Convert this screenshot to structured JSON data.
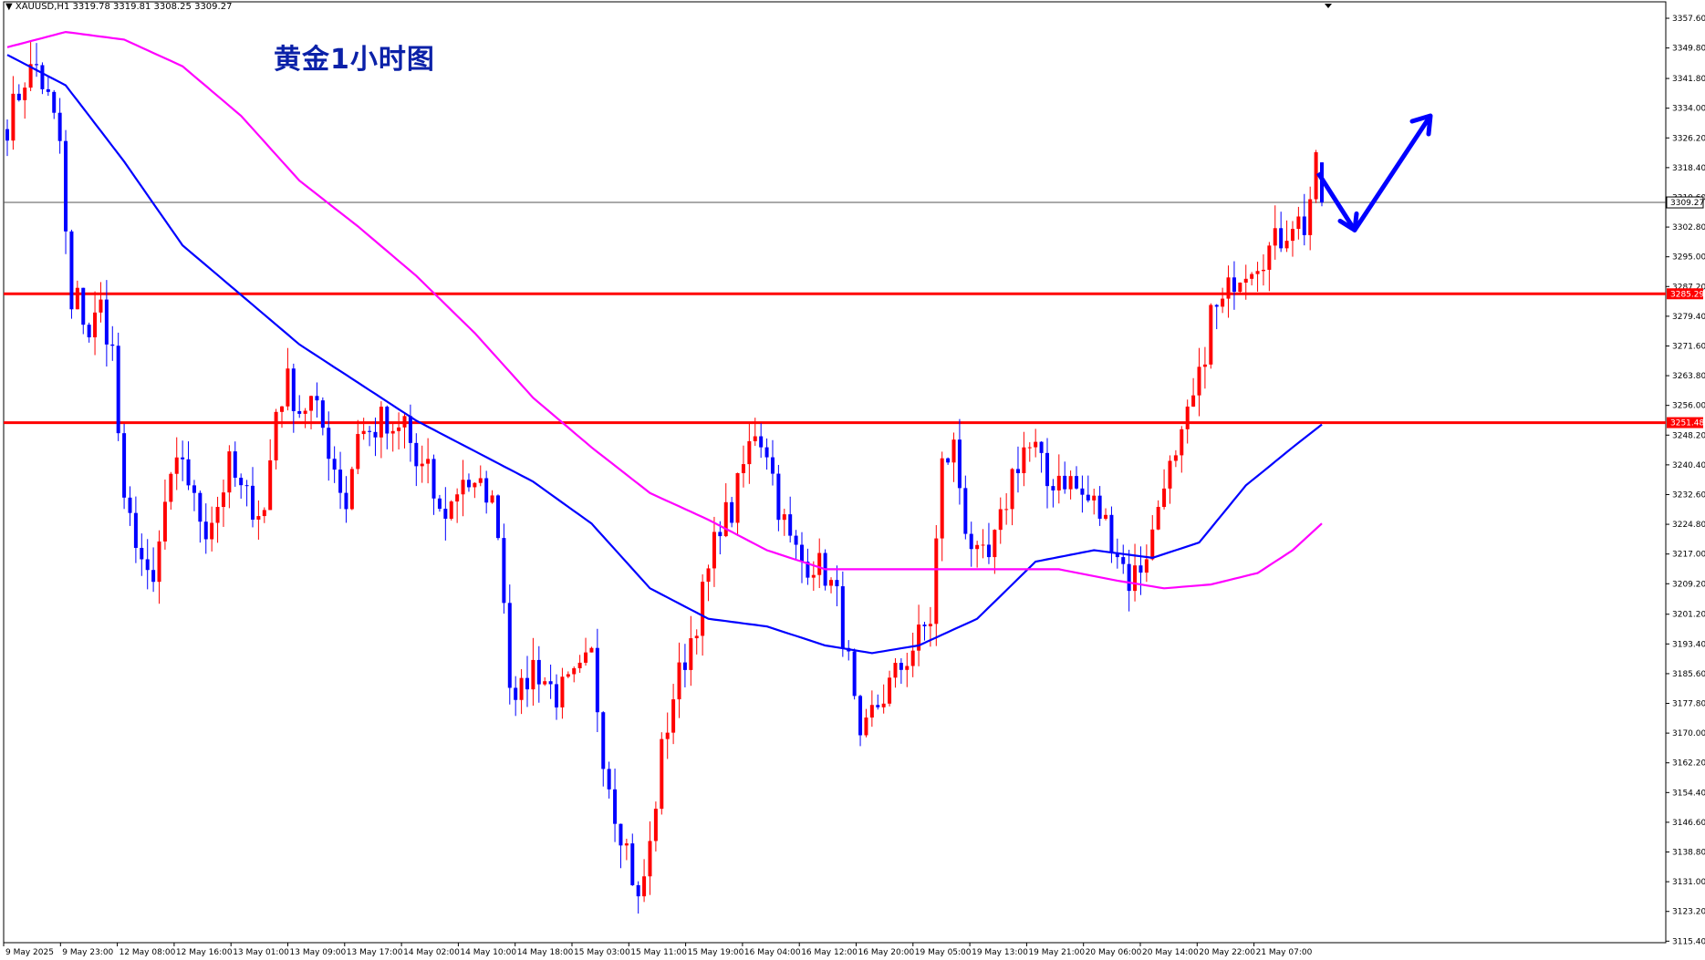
{
  "header": {
    "symbol_label": "▼ XAUUSD,H1  3319.78 3319.81 3308.25 3309.27"
  },
  "annotation": "黄金1小时图",
  "colors": {
    "bull": "#ff0000",
    "bear": "#0000ff",
    "ma_fast": "#0000ff",
    "ma_slow": "#ff00ff",
    "hline": "#ff0000",
    "arrow": "#0000ff"
  },
  "chart_data": {
    "type": "candlestick",
    "symbol": "XAUUSD",
    "timeframe": "H1",
    "ohlc_current": {
      "open": 3319.78,
      "high": 3319.81,
      "low": 3308.25,
      "close": 3309.27
    },
    "ylim": [
      3115.0,
      3360.0
    ],
    "y_ticks": [
      "3357.60",
      "3349.80",
      "3341.80",
      "3334.00",
      "3326.20",
      "3318.40",
      "3310.60",
      "3302.80",
      "3295.00",
      "3287.20",
      "3279.40",
      "3271.60",
      "3263.80",
      "3256.00",
      "3248.20",
      "3240.40",
      "3232.60",
      "3224.80",
      "3217.00",
      "3209.20",
      "3201.20",
      "3193.40",
      "3185.60",
      "3177.80",
      "3170.00",
      "3162.20",
      "3154.40",
      "3146.60",
      "3138.80",
      "3131.00",
      "3123.20",
      "3115.40"
    ],
    "x_ticks": [
      "9 May 2025",
      "9 May 23:00",
      "12 May 08:00",
      "12 May 16:00",
      "13 May 01:00",
      "13 May 09:00",
      "13 May 17:00",
      "14 May 02:00",
      "14 May 10:00",
      "14 May 18:00",
      "15 May 03:00",
      "15 May 11:00",
      "15 May 19:00",
      "16 May 04:00",
      "16 May 12:00",
      "16 May 20:00",
      "19 May 05:00",
      "19 May 13:00",
      "19 May 21:00",
      "20 May 06:00",
      "20 May 14:00",
      "20 May 22:00",
      "21 May 07:00"
    ],
    "price_labels": [
      {
        "value": 3309.27,
        "text": "3309.27",
        "style": "current"
      },
      {
        "value": 3285.29,
        "text": "3285.29",
        "style": "red"
      },
      {
        "value": 3251.48,
        "text": "3251.48",
        "style": "red"
      }
    ],
    "horizontal_lines": [
      3285.29,
      3251.48
    ],
    "current_price": 3309.27,
    "anchors": [
      [
        0,
        3330
      ],
      [
        3,
        3342
      ],
      [
        5,
        3345
      ],
      [
        7,
        3336
      ],
      [
        9,
        3325
      ],
      [
        10,
        3300
      ],
      [
        11,
        3280
      ],
      [
        12,
        3284
      ],
      [
        14,
        3275
      ],
      [
        16,
        3282
      ],
      [
        18,
        3270
      ],
      [
        20,
        3228
      ],
      [
        22,
        3222
      ],
      [
        24,
        3209
      ],
      [
        25,
        3208
      ],
      [
        27,
        3230
      ],
      [
        30,
        3243
      ],
      [
        32,
        3230
      ],
      [
        34,
        3224
      ],
      [
        36,
        3230
      ],
      [
        38,
        3240
      ],
      [
        40,
        3233
      ],
      [
        42,
        3230
      ],
      [
        44,
        3228
      ],
      [
        46,
        3255
      ],
      [
        48,
        3262
      ],
      [
        50,
        3255
      ],
      [
        52,
        3257
      ],
      [
        54,
        3250
      ],
      [
        56,
        3240
      ],
      [
        58,
        3230
      ],
      [
        60,
        3250
      ],
      [
        62,
        3248
      ],
      [
        64,
        3252
      ],
      [
        66,
        3246
      ],
      [
        68,
        3252
      ],
      [
        70,
        3240
      ],
      [
        72,
        3238
      ],
      [
        74,
        3227
      ],
      [
        76,
        3230
      ],
      [
        78,
        3238
      ],
      [
        80,
        3233
      ],
      [
        82,
        3234
      ],
      [
        84,
        3225
      ],
      [
        86,
        3185
      ],
      [
        88,
        3180
      ],
      [
        90,
        3188
      ],
      [
        92,
        3184
      ],
      [
        94,
        3180
      ],
      [
        96,
        3182
      ],
      [
        98,
        3185
      ],
      [
        100,
        3190
      ],
      [
        102,
        3165
      ],
      [
        104,
        3150
      ],
      [
        106,
        3140
      ],
      [
        108,
        3125
      ],
      [
        110,
        3140
      ],
      [
        112,
        3165
      ],
      [
        114,
        3180
      ],
      [
        116,
        3190
      ],
      [
        118,
        3200
      ],
      [
        120,
        3212
      ],
      [
        122,
        3226
      ],
      [
        124,
        3228
      ],
      [
        126,
        3240
      ],
      [
        128,
        3250
      ],
      [
        130,
        3245
      ],
      [
        132,
        3230
      ],
      [
        134,
        3220
      ],
      [
        136,
        3215
      ],
      [
        138,
        3215
      ],
      [
        140,
        3212
      ],
      [
        142,
        3205
      ],
      [
        144,
        3188
      ],
      [
        146,
        3165
      ],
      [
        148,
        3175
      ],
      [
        150,
        3180
      ],
      [
        152,
        3185
      ],
      [
        154,
        3190
      ],
      [
        156,
        3195
      ],
      [
        158,
        3200
      ],
      [
        160,
        3240
      ],
      [
        162,
        3245
      ],
      [
        164,
        3225
      ],
      [
        166,
        3215
      ],
      [
        168,
        3215
      ],
      [
        170,
        3225
      ],
      [
        172,
        3238
      ],
      [
        174,
        3245
      ],
      [
        176,
        3244
      ],
      [
        178,
        3235
      ],
      [
        180,
        3238
      ],
      [
        182,
        3236
      ],
      [
        184,
        3232
      ],
      [
        186,
        3230
      ],
      [
        188,
        3225
      ],
      [
        190,
        3218
      ],
      [
        192,
        3210
      ],
      [
        194,
        3214
      ],
      [
        196,
        3222
      ],
      [
        198,
        3238
      ],
      [
        200,
        3240
      ],
      [
        202,
        3252
      ],
      [
        204,
        3262
      ],
      [
        206,
        3280
      ],
      [
        208,
        3282
      ],
      [
        210,
        3290
      ],
      [
        212,
        3293
      ],
      [
        214,
        3295
      ],
      [
        216,
        3297
      ],
      [
        218,
        3300
      ],
      [
        220,
        3305
      ],
      [
        222,
        3303
      ],
      [
        224,
        3318
      ],
      [
        225,
        3309.27
      ]
    ],
    "ma_fast": [
      [
        0,
        3348
      ],
      [
        10,
        3340
      ],
      [
        20,
        3320
      ],
      [
        30,
        3298
      ],
      [
        40,
        3285
      ],
      [
        50,
        3272
      ],
      [
        60,
        3262
      ],
      [
        70,
        3252
      ],
      [
        80,
        3244
      ],
      [
        90,
        3236
      ],
      [
        100,
        3225
      ],
      [
        110,
        3208
      ],
      [
        120,
        3200
      ],
      [
        130,
        3198
      ],
      [
        140,
        3193
      ],
      [
        148,
        3191
      ],
      [
        156,
        3193
      ],
      [
        166,
        3200
      ],
      [
        176,
        3215
      ],
      [
        186,
        3218
      ],
      [
        196,
        3216
      ],
      [
        204,
        3220
      ],
      [
        212,
        3235
      ],
      [
        220,
        3245
      ],
      [
        225,
        3251
      ]
    ],
    "ma_slow": [
      [
        0,
        3350
      ],
      [
        10,
        3354
      ],
      [
        20,
        3352
      ],
      [
        30,
        3345
      ],
      [
        40,
        3332
      ],
      [
        50,
        3315
      ],
      [
        60,
        3303
      ],
      [
        70,
        3290
      ],
      [
        80,
        3275
      ],
      [
        90,
        3258
      ],
      [
        100,
        3245
      ],
      [
        110,
        3233
      ],
      [
        120,
        3226
      ],
      [
        130,
        3218
      ],
      [
        140,
        3213
      ],
      [
        150,
        3213
      ],
      [
        160,
        3213
      ],
      [
        170,
        3213
      ],
      [
        180,
        3213
      ],
      [
        190,
        3210
      ],
      [
        198,
        3208
      ],
      [
        206,
        3209
      ],
      [
        214,
        3212
      ],
      [
        220,
        3218
      ],
      [
        225,
        3225
      ]
    ],
    "forecast_arrow": [
      [
        3317
      ],
      [
        3302
      ],
      [
        3332
      ]
    ]
  }
}
